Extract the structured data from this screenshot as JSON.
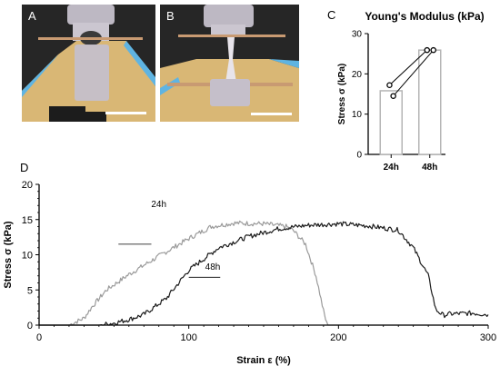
{
  "panels": {
    "a": {
      "letter": "A"
    },
    "b": {
      "letter": "B"
    },
    "c": {
      "letter": "C"
    },
    "d": {
      "letter": "D"
    }
  },
  "colors": {
    "photo_bg": "#2a2a2a",
    "gel": "#c9c4cf",
    "clamp": "#d9b775",
    "plate": "#5fb4e2",
    "scale_bar": "#ffffff",
    "series_24h": "#9a9a9a",
    "series_48h": "#1a1a1a"
  },
  "chart_data": [
    {
      "type": "bar",
      "title": "Young's Modulus (kPa)",
      "ylabel": "Stress σ (kPa)",
      "xlabel": "",
      "categories": [
        "24h",
        "48h"
      ],
      "values": [
        15.8,
        25.9
      ],
      "points": [
        [
          17.2,
          14.5
        ],
        [
          25.9,
          25.9
        ]
      ],
      "ylim": [
        0,
        30
      ],
      "yticks": [
        0,
        10,
        20,
        30
      ],
      "grid": false
    },
    {
      "type": "line",
      "title": "",
      "xlabel": "Strain ε (%)",
      "ylabel": "Stress σ (kPa)",
      "xlim": [
        0,
        300
      ],
      "ylim": [
        0,
        20
      ],
      "xticks": [
        0,
        100,
        200,
        300
      ],
      "yticks": [
        0,
        5,
        10,
        15,
        20
      ],
      "grid": false,
      "legend": "inline labels",
      "series": [
        {
          "name": "24h",
          "color": "#9a9a9a",
          "x": [
            0,
            20,
            30,
            35,
            45,
            60,
            80,
            100,
            115,
            130,
            150,
            165,
            170,
            178,
            185,
            190,
            192,
            193,
            195,
            300
          ],
          "y": [
            0,
            0,
            1.0,
            2.5,
            5.0,
            7.2,
            9.8,
            12.3,
            14.0,
            14.5,
            14.4,
            14.0,
            13.4,
            11.5,
            7.0,
            2.0,
            0.3,
            0,
            0,
            0
          ]
        },
        {
          "name": "48h",
          "color": "#1a1a1a",
          "x": [
            0,
            40,
            50,
            60,
            70,
            85,
            100,
            120,
            140,
            160,
            180,
            200,
            220,
            240,
            250,
            260,
            265,
            270,
            275,
            290,
            300
          ],
          "y": [
            0,
            0,
            0.3,
            0.8,
            1.5,
            3.8,
            7.8,
            11.0,
            12.6,
            13.7,
            14.2,
            14.4,
            14.1,
            13.5,
            11.0,
            7.0,
            2.2,
            1.4,
            1.6,
            1.7,
            1.5
          ]
        }
      ]
    }
  ]
}
